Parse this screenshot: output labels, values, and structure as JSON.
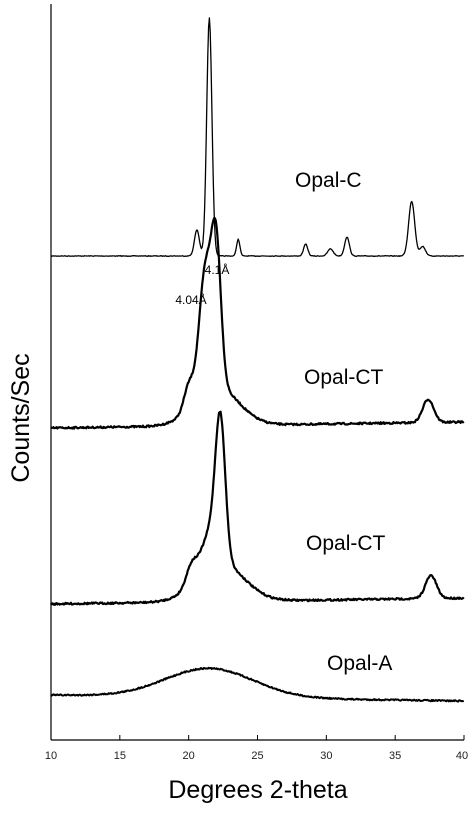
{
  "chart_data": {
    "type": "line",
    "title": "",
    "xlabel": "Degrees 2-theta",
    "ylabel": "Counts/Sec",
    "xlim": [
      10,
      40
    ],
    "xticks": [
      "10",
      "15",
      "20",
      "25",
      "30",
      "35",
      "40"
    ],
    "grid": false,
    "legend": "none",
    "series": [
      {
        "name": "Opal-C",
        "peaks": [
          {
            "x": 20.6,
            "height": 0.11,
            "width": 0.18
          },
          {
            "x": 21.5,
            "height": 1.0,
            "width": 0.19
          },
          {
            "x": 23.6,
            "height": 0.07,
            "width": 0.12
          },
          {
            "x": 28.5,
            "height": 0.05,
            "width": 0.15
          },
          {
            "x": 30.3,
            "height": 0.03,
            "width": 0.2
          },
          {
            "x": 31.5,
            "height": 0.08,
            "width": 0.17
          },
          {
            "x": 36.2,
            "height": 0.23,
            "width": 0.22
          },
          {
            "x": 37.0,
            "height": 0.04,
            "width": 0.2
          }
        ]
      },
      {
        "name": "Opal-CT",
        "peaks": [
          {
            "x": 20.0,
            "height": 0.06,
            "width": 0.35
          },
          {
            "x": 21.2,
            "height": 0.31,
            "width": 0.45
          },
          {
            "x": 22.0,
            "height": 0.36,
            "width": 0.35
          },
          {
            "x": 22.0,
            "height": 0.1,
            "width": 1.6
          },
          {
            "x": 37.4,
            "height": 0.06,
            "width": 0.4
          }
        ]
      },
      {
        "name": "Opal-CT",
        "peaks": [
          {
            "x": 20.2,
            "height": 0.05,
            "width": 0.4
          },
          {
            "x": 21.5,
            "height": 0.09,
            "width": 0.6
          },
          {
            "x": 22.3,
            "height": 0.36,
            "width": 0.36
          },
          {
            "x": 22.3,
            "height": 0.1,
            "width": 1.7
          },
          {
            "x": 37.6,
            "height": 0.06,
            "width": 0.4
          }
        ]
      },
      {
        "name": "Opal-A",
        "peaks": [
          {
            "x": 21.5,
            "height": 0.1,
            "width": 3.2
          }
        ]
      }
    ],
    "annotations": [
      {
        "text": "4.1Å",
        "x": 22.0
      },
      {
        "text": "4.04Å",
        "x": 21.2
      }
    ]
  }
}
